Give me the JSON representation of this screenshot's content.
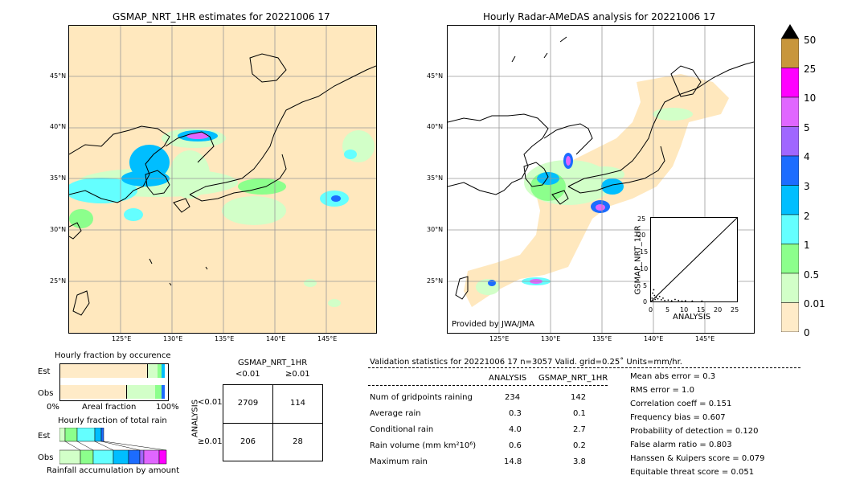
{
  "left_map": {
    "title": "GSMAP_NRT_1HR estimates for 20221006 17",
    "lat_labels": [
      "45°N",
      "40°N",
      "35°N",
      "30°N",
      "25°N"
    ],
    "lon_labels": [
      "125°E",
      "130°E",
      "135°E",
      "140°E",
      "145°E"
    ]
  },
  "right_map": {
    "title": "Hourly Radar-AMeDAS analysis for 20221006 17",
    "lat_labels": [
      "45°N",
      "40°N",
      "35°N",
      "30°N",
      "25°N"
    ],
    "lon_labels": [
      "125°E",
      "130°E",
      "135°E",
      "140°E",
      "145°E"
    ],
    "credit": "Provided by JWA/JMA"
  },
  "colorbar": {
    "labels": [
      "50",
      "25",
      "10",
      "5",
      "4",
      "3",
      "2",
      "1",
      "0.5",
      "0.01",
      "0"
    ],
    "colors": [
      "#c8963c",
      "#ff00ff",
      "#e066ff",
      "#a066ff",
      "#1c6cff",
      "#00beff",
      "#64ffff",
      "#8cff8c",
      "#d2ffc8",
      "#ffebc8"
    ]
  },
  "scatter_inset": {
    "ylabel": "GSMAP_NRT_1HR",
    "xlabel": "ANALYSIS",
    "ticks": [
      "0",
      "5",
      "10",
      "15",
      "20",
      "25"
    ]
  },
  "occurrence": {
    "title": "Hourly fraction by occurence",
    "rows": [
      "Est",
      "Obs"
    ],
    "axis_left": "0%",
    "axis_mid": "Areal fraction",
    "axis_right": "100%"
  },
  "total_rain": {
    "title": "Hourly fraction of total rain",
    "rows": [
      "Est",
      "Obs"
    ],
    "footer": "Rainfall accumulation by amount"
  },
  "contingency": {
    "title": "GSMAP_NRT_1HR",
    "col_lt": "<0.01",
    "col_ge": "≥0.01",
    "row_axis": "ANALYSIS",
    "row_lt": "<0.01",
    "row_ge": "≥0.01",
    "cells": [
      [
        "2709",
        "114"
      ],
      [
        "206",
        "28"
      ]
    ]
  },
  "validation": {
    "header": "Validation statistics for 20221006 17  n=3057 Valid. grid=0.25˚ Units=mm/hr.",
    "col_analysis": "ANALYSIS",
    "col_gsmap": "GSMAP_NRT_1HR",
    "rows": [
      {
        "label": "Num of gridpoints raining",
        "analysis": "234",
        "gsmap": "142"
      },
      {
        "label": "Average rain",
        "analysis": "0.3",
        "gsmap": "0.1"
      },
      {
        "label": "Conditional rain",
        "analysis": "4.0",
        "gsmap": "2.7"
      },
      {
        "label": "Rain volume (mm km²10⁶)",
        "analysis": "0.6",
        "gsmap": "0.2"
      },
      {
        "label": "Maximum rain",
        "analysis": "14.8",
        "gsmap": "3.8"
      }
    ],
    "scores": [
      "Mean abs error =    0.3",
      "RMS error =    1.0",
      "Correlation coeff =  0.151",
      "Frequency bias =  0.607",
      "Probability of detection =  0.120",
      "False alarm ratio =  0.803",
      "Hanssen & Kuipers score =  0.079",
      "Equitable threat score =  0.051"
    ]
  }
}
